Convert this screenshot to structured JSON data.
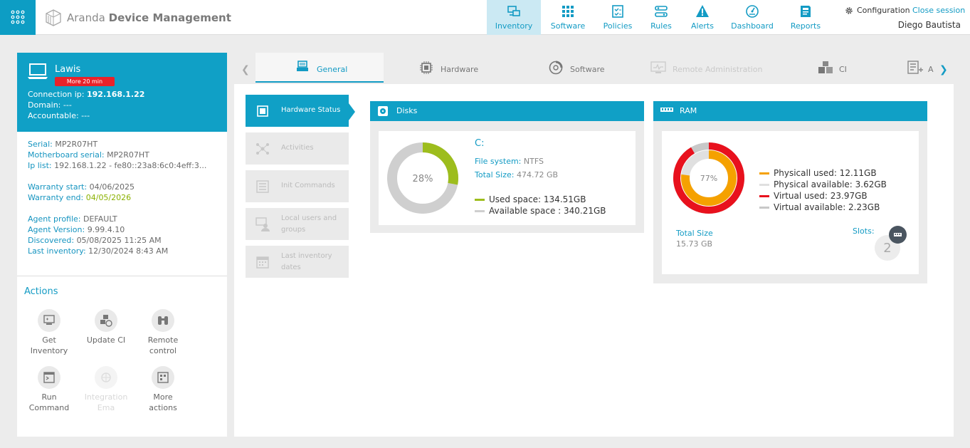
{
  "header": {
    "brand_light": "Aranda",
    "brand_bold": "Device Management",
    "nav": [
      {
        "label": "Inventory",
        "icon": "inventory-icon",
        "active": true
      },
      {
        "label": "Software",
        "icon": "software-grid-icon"
      },
      {
        "label": "Policies",
        "icon": "policies-icon"
      },
      {
        "label": "Rules",
        "icon": "rules-icon"
      },
      {
        "label": "Alerts",
        "icon": "alert-icon"
      },
      {
        "label": "Dashboard",
        "icon": "dashboard-icon"
      },
      {
        "label": "Reports",
        "icon": "reports-icon"
      }
    ],
    "configuration": "Configuration",
    "close_session": "Close session",
    "user": "Diego Bautista"
  },
  "device": {
    "name": "Lawis",
    "badge": "More 20 min",
    "connection_ip_label": "Connection ip:",
    "connection_ip": "192.168.1.22",
    "domain_label": "Domain:",
    "domain": "---",
    "accountable_label": "Accountable:",
    "accountable": "---"
  },
  "info": {
    "serial_label": "Serial:",
    "serial": "MP2R07HT",
    "motherboard_label": "Motherboard serial:",
    "motherboard": "MP2R07HT",
    "ip_list_label": "Ip list:",
    "ip_list": "192.168.1.22 - fe80::23a8:6c0:4eff:3...",
    "warranty_start_label": "Warranty start:",
    "warranty_start": "04/06/2025",
    "warranty_end_label": "Warranty end:",
    "warranty_end": "04/05/2026",
    "agent_profile_label": "Agent profile:",
    "agent_profile": "DEFAULT",
    "agent_version_label": "Agent Version:",
    "agent_version": "9.99.4.10",
    "discovered_label": "Discovered:",
    "discovered": "05/08/2025 11:25 AM",
    "last_inventory_label": "Last inventory:",
    "last_inventory": "12/30/2024 8:43 AM"
  },
  "actions": {
    "title": "Actions",
    "items": [
      {
        "label": "Get Inventory",
        "icon": "get-inventory-icon"
      },
      {
        "label": "Update CI",
        "icon": "update-ci-icon"
      },
      {
        "label": "Remote control",
        "icon": "remote-control-icon"
      },
      {
        "label": "Run Command",
        "icon": "run-command-icon"
      },
      {
        "label": "Integration Ema",
        "icon": "integration-icon",
        "disabled": true
      },
      {
        "label": "More actions",
        "icon": "more-actions-icon"
      }
    ]
  },
  "tabs": [
    {
      "label": "General",
      "icon": "general-icon",
      "active": true
    },
    {
      "label": "Hardware",
      "icon": "hardware-chip-icon"
    },
    {
      "label": "Software",
      "icon": "software-disc-icon"
    },
    {
      "label": "Remote Administration",
      "icon": "remote-admin-icon",
      "disabled": true
    },
    {
      "label": "CI",
      "icon": "ci-cubes-icon"
    },
    {
      "label": "A",
      "icon": "add-list-icon"
    }
  ],
  "side_menu": [
    {
      "label": "Hardware Status",
      "icon": "chip-icon",
      "active": true
    },
    {
      "label": "Activities",
      "icon": "activities-icon"
    },
    {
      "label": "Init Commands",
      "icon": "init-commands-icon"
    },
    {
      "label": "Local users and groups",
      "icon": "users-icon"
    },
    {
      "label": "Last inventory dates",
      "icon": "calendar-icon"
    }
  ],
  "disks": {
    "title": "Disks",
    "drive": "C:",
    "fs_label": "File system:",
    "fs": "NTFS",
    "total_label": "Total Size:",
    "total": "474.72 GB",
    "percent_label": "28%",
    "used_fraction": 0.28,
    "used_label": "Used space:  134.51GB",
    "available_label": "Available space :  340.21GB",
    "colors": {
      "used": "#9dbd1d",
      "available": "#cfcfcf"
    }
  },
  "ram": {
    "title": "RAM",
    "percent_label": "77%",
    "physical_fraction": 0.77,
    "virtual_fraction": 0.915,
    "physical_used": "Physicall used: 12.11GB",
    "physical_available": "Physical available: 3.62GB",
    "virtual_used": "Virtual used: 23.97GB",
    "virtual_available": "Virtual available: 2.23GB",
    "total_label": "Total Size",
    "total": "15.73 GB",
    "slots_label": "Slots:",
    "slots": "2",
    "colors": {
      "physical_used": "#f5a100",
      "physical_available": "#e0e0e0",
      "virtual_used": "#e8111d",
      "virtual_available": "#c8c8c8"
    }
  }
}
